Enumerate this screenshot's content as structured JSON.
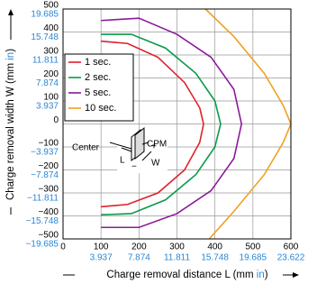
{
  "chart_data": {
    "type": "line",
    "title_y": [
      "Charge removal width W (mm ",
      "in",
      ")"
    ],
    "title_x": [
      "Charge removal distance L (mm ",
      "in",
      ")"
    ],
    "xlim": [
      0,
      600
    ],
    "ylim": [
      -500,
      500
    ],
    "grid": true,
    "xticks": [
      0,
      100,
      200,
      300,
      400,
      500,
      600
    ],
    "yticks": [
      {
        "value": -500,
        "label": "−500"
      },
      {
        "value": -400,
        "label": "−400"
      },
      {
        "value": -300,
        "label": "−300"
      },
      {
        "value": -200,
        "label": "−200"
      },
      {
        "value": -100,
        "label": "−100"
      },
      0,
      100,
      200,
      300,
      400,
      500
    ],
    "x_inch_ticks": [
      {
        "value": 100,
        "label": "3.937"
      },
      {
        "value": 200,
        "label": "7.874"
      },
      {
        "value": 300,
        "label": "11.811"
      },
      {
        "value": 400,
        "label": "15.748"
      },
      {
        "value": 500,
        "label": "19.685"
      },
      {
        "value": 600,
        "label": "23.622"
      }
    ],
    "y_inch_ticks": [
      {
        "value": -500,
        "label": "−19.685"
      },
      {
        "value": -400,
        "label": "−15.748"
      },
      {
        "value": -300,
        "label": "−11.811"
      },
      {
        "value": -200,
        "label": "−7.874"
      },
      {
        "value": -100,
        "label": "−3.937"
      },
      {
        "value": 100,
        "label": "3.937"
      },
      {
        "value": 200,
        "label": "7.874"
      },
      {
        "value": 300,
        "label": "11.811"
      },
      {
        "value": 400,
        "label": "15.748"
      },
      {
        "value": 500,
        "label": "19.685"
      }
    ],
    "series": [
      {
        "name": "1 sec.",
        "color": "#e0202a",
        "x": [
          100,
          170,
          250,
          320,
          360,
          370,
          360,
          320,
          250,
          170,
          100
        ],
        "values": [
          360,
          350,
          290,
          180,
          70,
          0,
          -80,
          -200,
          -300,
          -350,
          -360
        ]
      },
      {
        "name": "2 sec.",
        "color": "#0a9a4a",
        "x": [
          100,
          180,
          270,
          350,
          400,
          415,
          400,
          350,
          270,
          180,
          100
        ],
        "values": [
          390,
          390,
          330,
          220,
          100,
          0,
          -100,
          -220,
          -330,
          -390,
          -395
        ]
      },
      {
        "name": "5 sec.",
        "color": "#8a1a9a",
        "x": [
          100,
          200,
          300,
          390,
          450,
          470,
          450,
          390,
          300,
          200,
          100
        ],
        "values": [
          450,
          460,
          390,
          290,
          150,
          0,
          -150,
          -290,
          -390,
          -450,
          -450
        ]
      },
      {
        "name": "10 sec.",
        "color": "#f0a020",
        "x": [
          375,
          450,
          530,
          580,
          600,
          580,
          530,
          450,
          385
        ],
        "values": [
          500,
          380,
          220,
          80,
          0,
          -80,
          -220,
          -380,
          -500
        ]
      }
    ],
    "annotations": [
      "CPM",
      "Center",
      "L",
      "W",
      "+",
      "−"
    ]
  }
}
